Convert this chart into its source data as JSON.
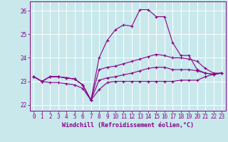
{
  "xlabel": "Windchill (Refroidissement éolien,°C)",
  "bg_color": "#c8e8ec",
  "line_color": "#880088",
  "grid_color": "#ffffff",
  "xlim": [
    -0.5,
    23.5
  ],
  "ylim": [
    21.75,
    26.4
  ],
  "yticks": [
    22,
    23,
    24,
    25,
    26
  ],
  "xticks": [
    0,
    1,
    2,
    3,
    4,
    5,
    6,
    7,
    8,
    9,
    10,
    11,
    12,
    13,
    14,
    15,
    16,
    17,
    18,
    19,
    20,
    21,
    22,
    23
  ],
  "series": [
    [
      23.2,
      23.0,
      23.2,
      23.2,
      23.15,
      23.1,
      22.85,
      22.2,
      24.0,
      24.75,
      25.2,
      25.4,
      25.35,
      26.05,
      26.05,
      25.75,
      25.75,
      24.65,
      24.1,
      24.1,
      23.5,
      23.35,
      23.3,
      23.35
    ],
    [
      23.2,
      23.0,
      23.2,
      23.2,
      23.15,
      23.1,
      22.85,
      22.2,
      23.5,
      23.6,
      23.65,
      23.75,
      23.85,
      23.95,
      24.05,
      24.15,
      24.1,
      24.0,
      24.0,
      23.95,
      23.85,
      23.55,
      23.35,
      23.35
    ],
    [
      23.2,
      23.0,
      23.2,
      23.2,
      23.15,
      23.1,
      22.85,
      22.2,
      23.05,
      23.15,
      23.2,
      23.28,
      23.35,
      23.45,
      23.55,
      23.6,
      23.6,
      23.5,
      23.5,
      23.5,
      23.45,
      23.35,
      23.3,
      23.35
    ],
    [
      23.2,
      23.0,
      22.95,
      22.95,
      22.9,
      22.85,
      22.7,
      22.2,
      22.65,
      22.95,
      23.0,
      23.0,
      23.0,
      23.0,
      23.0,
      23.0,
      23.0,
      23.0,
      23.05,
      23.05,
      23.05,
      23.2,
      23.3,
      23.35
    ]
  ],
  "markersize": 3,
  "linewidth": 0.8,
  "xlabel_fontsize": 6,
  "tick_fontsize": 5.5
}
